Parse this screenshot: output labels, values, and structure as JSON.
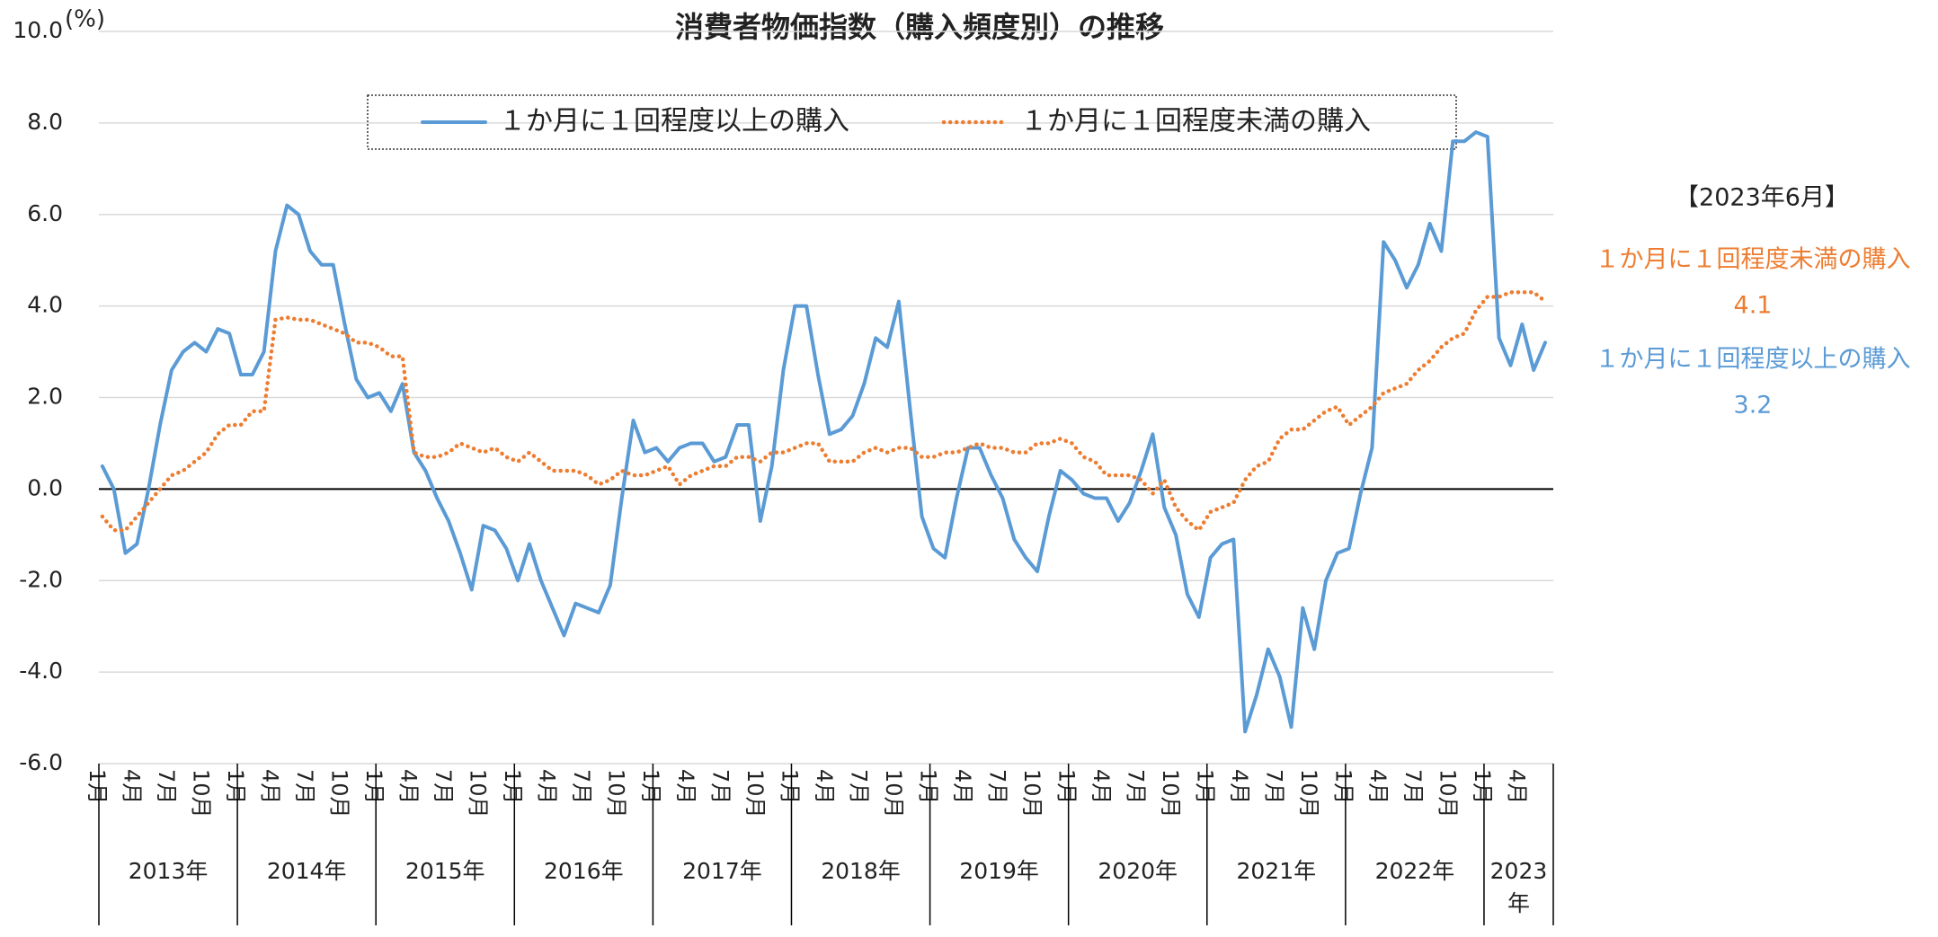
{
  "chart_data": {
    "type": "line",
    "title": "消費者物価指数（購入頻度別）の推移",
    "y_unit": "(%)",
    "ylim": [
      -6,
      10
    ],
    "yticks": [
      {
        "value": -6,
        "label": "-6.0"
      },
      {
        "value": -4,
        "label": "-4.0"
      },
      {
        "value": -2,
        "label": "-2.0"
      },
      {
        "value": 0,
        "label": "0.0"
      },
      {
        "value": 2,
        "label": "2.0"
      },
      {
        "value": 4,
        "label": "4.0"
      },
      {
        "value": 6,
        "label": "6.0"
      },
      {
        "value": 8,
        "label": "8.0"
      },
      {
        "value": 10,
        "label": "10.0"
      }
    ],
    "grid": true,
    "categories": [
      "1月",
      null,
      null,
      "4月",
      null,
      null,
      "7月",
      null,
      null,
      "10月",
      null,
      null,
      "1月",
      null,
      null,
      "4月",
      null,
      null,
      "7月",
      null,
      null,
      "10月",
      null,
      null,
      "1月",
      null,
      null,
      "4月",
      null,
      null,
      "7月",
      null,
      null,
      "10月",
      null,
      null,
      "1月",
      null,
      null,
      "4月",
      null,
      null,
      "7月",
      null,
      null,
      "10月",
      null,
      null,
      "1月",
      null,
      null,
      "4月",
      null,
      null,
      "7月",
      null,
      null,
      "10月",
      null,
      null,
      "1月",
      null,
      null,
      "4月",
      null,
      null,
      "7月",
      null,
      null,
      "10月",
      null,
      null,
      "1月",
      null,
      null,
      "4月",
      null,
      null,
      "7月",
      null,
      null,
      "10月",
      null,
      null,
      "1月",
      null,
      null,
      "4月",
      null,
      null,
      "7月",
      null,
      null,
      "10月",
      null,
      null,
      "1月",
      null,
      null,
      "4月",
      null,
      null,
      "7月",
      null,
      null,
      "10月",
      null,
      null,
      "1月",
      null,
      null,
      "4月",
      null,
      null,
      "7月",
      null,
      null,
      "10月",
      null,
      null,
      "1月",
      null,
      null,
      "4月",
      null,
      null
    ],
    "category_groups": [
      "2013年",
      "2014年",
      "2015年",
      "2016年",
      "2017年",
      "2018年",
      "2019年",
      "2020年",
      "2021年",
      "2022年",
      "2023年"
    ],
    "series": [
      {
        "name": "１か月に１回程度以上の購入",
        "color": "#5b9bd5",
        "dashed": false,
        "values": [
          0.5,
          0.0,
          -1.4,
          -1.2,
          0.0,
          1.4,
          2.6,
          3.0,
          3.2,
          3.0,
          3.5,
          3.4,
          2.5,
          2.5,
          3.0,
          5.2,
          6.2,
          6.0,
          5.2,
          4.9,
          4.9,
          3.6,
          2.4,
          2.0,
          2.1,
          1.7,
          2.3,
          0.8,
          0.4,
          -0.2,
          -0.7,
          -1.4,
          -2.2,
          -0.8,
          -0.9,
          -1.3,
          -2.0,
          -1.2,
          -2.0,
          -2.6,
          -3.2,
          -2.5,
          -2.6,
          -2.7,
          -2.1,
          -0.2,
          1.5,
          0.8,
          0.9,
          0.6,
          0.9,
          1.0,
          1.0,
          0.6,
          0.7,
          1.4,
          1.4,
          -0.7,
          0.5,
          2.6,
          4.0,
          4.0,
          2.5,
          1.2,
          1.3,
          1.6,
          2.3,
          3.3,
          3.1,
          4.1,
          1.7,
          -0.6,
          -1.3,
          -1.5,
          -0.2,
          0.9,
          0.9,
          0.3,
          -0.2,
          -1.1,
          -1.5,
          -1.8,
          -0.6,
          0.4,
          0.2,
          -0.1,
          -0.2,
          -0.2,
          -0.7,
          -0.3,
          0.4,
          1.2,
          -0.4,
          -1.0,
          -2.3,
          -2.8,
          -1.5,
          -1.2,
          -1.1,
          -5.3,
          -4.5,
          -3.5,
          -4.1,
          -5.2,
          -2.6,
          -3.5,
          -2.0,
          -1.4,
          -1.3,
          -0.1,
          0.9,
          5.4,
          5.0,
          4.4,
          4.9,
          5.8,
          5.2,
          7.6,
          7.6,
          7.8,
          7.7,
          3.3,
          2.7,
          3.6,
          2.6,
          3.2
        ]
      },
      {
        "name": "１か月に１回程度未満の購入",
        "color": "#ed7d31",
        "dashed": true,
        "values": [
          -0.6,
          -0.9,
          -0.9,
          -0.6,
          -0.3,
          0.0,
          0.3,
          0.4,
          0.6,
          0.8,
          1.2,
          1.4,
          1.4,
          1.7,
          1.7,
          3.7,
          3.75,
          3.7,
          3.7,
          3.6,
          3.5,
          3.4,
          3.2,
          3.2,
          3.1,
          2.9,
          2.9,
          0.8,
          0.7,
          0.7,
          0.8,
          1.0,
          0.9,
          0.8,
          0.9,
          0.7,
          0.6,
          0.8,
          0.6,
          0.4,
          0.4,
          0.4,
          0.3,
          0.1,
          0.2,
          0.4,
          0.3,
          0.3,
          0.4,
          0.5,
          0.1,
          0.3,
          0.4,
          0.5,
          0.5,
          0.7,
          0.7,
          0.6,
          0.8,
          0.8,
          0.9,
          1.0,
          1.0,
          0.6,
          0.6,
          0.6,
          0.8,
          0.9,
          0.8,
          0.9,
          0.9,
          0.7,
          0.7,
          0.8,
          0.8,
          0.9,
          1.0,
          0.9,
          0.9,
          0.8,
          0.8,
          1.0,
          1.0,
          1.1,
          1.0,
          0.7,
          0.6,
          0.3,
          0.3,
          0.3,
          0.2,
          -0.1,
          0.2,
          -0.4,
          -0.7,
          -0.9,
          -0.5,
          -0.4,
          -0.3,
          0.2,
          0.5,
          0.6,
          1.1,
          1.3,
          1.3,
          1.5,
          1.7,
          1.8,
          1.4,
          1.6,
          1.8,
          2.1,
          2.2,
          2.3,
          2.6,
          2.8,
          3.1,
          3.3,
          3.4,
          3.9,
          4.2,
          4.2,
          4.3,
          4.3,
          4.3,
          4.1
        ]
      }
    ],
    "annotation": {
      "title": "【2023年6月】",
      "order": [
        1,
        0
      ]
    }
  }
}
